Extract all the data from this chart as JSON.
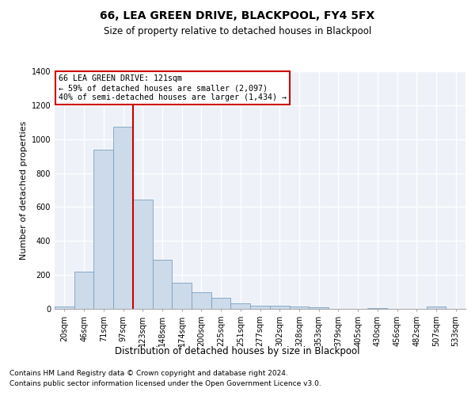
{
  "title1": "66, LEA GREEN DRIVE, BLACKPOOL, FY4 5FX",
  "title2": "Size of property relative to detached houses in Blackpool",
  "xlabel": "Distribution of detached houses by size in Blackpool",
  "ylabel": "Number of detached properties",
  "footnote1": "Contains HM Land Registry data © Crown copyright and database right 2024.",
  "footnote2": "Contains public sector information licensed under the Open Government Licence v3.0.",
  "bin_labels": [
    "20sqm",
    "46sqm",
    "71sqm",
    "97sqm",
    "123sqm",
    "148sqm",
    "174sqm",
    "200sqm",
    "225sqm",
    "251sqm",
    "277sqm",
    "302sqm",
    "328sqm",
    "353sqm",
    "379sqm",
    "405sqm",
    "430sqm",
    "456sqm",
    "482sqm",
    "507sqm",
    "533sqm"
  ],
  "bar_heights": [
    15,
    220,
    940,
    1075,
    645,
    290,
    155,
    100,
    65,
    35,
    20,
    20,
    12,
    10,
    0,
    0,
    5,
    0,
    0,
    15,
    0
  ],
  "bar_color": "#ccdaea",
  "bar_edge_color": "#7aA0C0",
  "ylim": [
    0,
    1400
  ],
  "yticks": [
    0,
    200,
    400,
    600,
    800,
    1000,
    1200,
    1400
  ],
  "property_line_color": "#cc0000",
  "property_line_x": 3.5,
  "annotation_line1": "66 LEA GREEN DRIVE: 121sqm",
  "annotation_line2": "← 59% of detached houses are smaller (2,097)",
  "annotation_line3": "40% of semi-detached houses are larger (1,434) →",
  "annotation_box_edgecolor": "#cc0000",
  "background_color": "#eef2f8",
  "grid_color": "#ffffff",
  "title1_fontsize": 10,
  "title2_fontsize": 8.5,
  "ylabel_fontsize": 8,
  "xlabel_fontsize": 8.5,
  "tick_fontsize": 7,
  "footnote_fontsize": 6.5
}
